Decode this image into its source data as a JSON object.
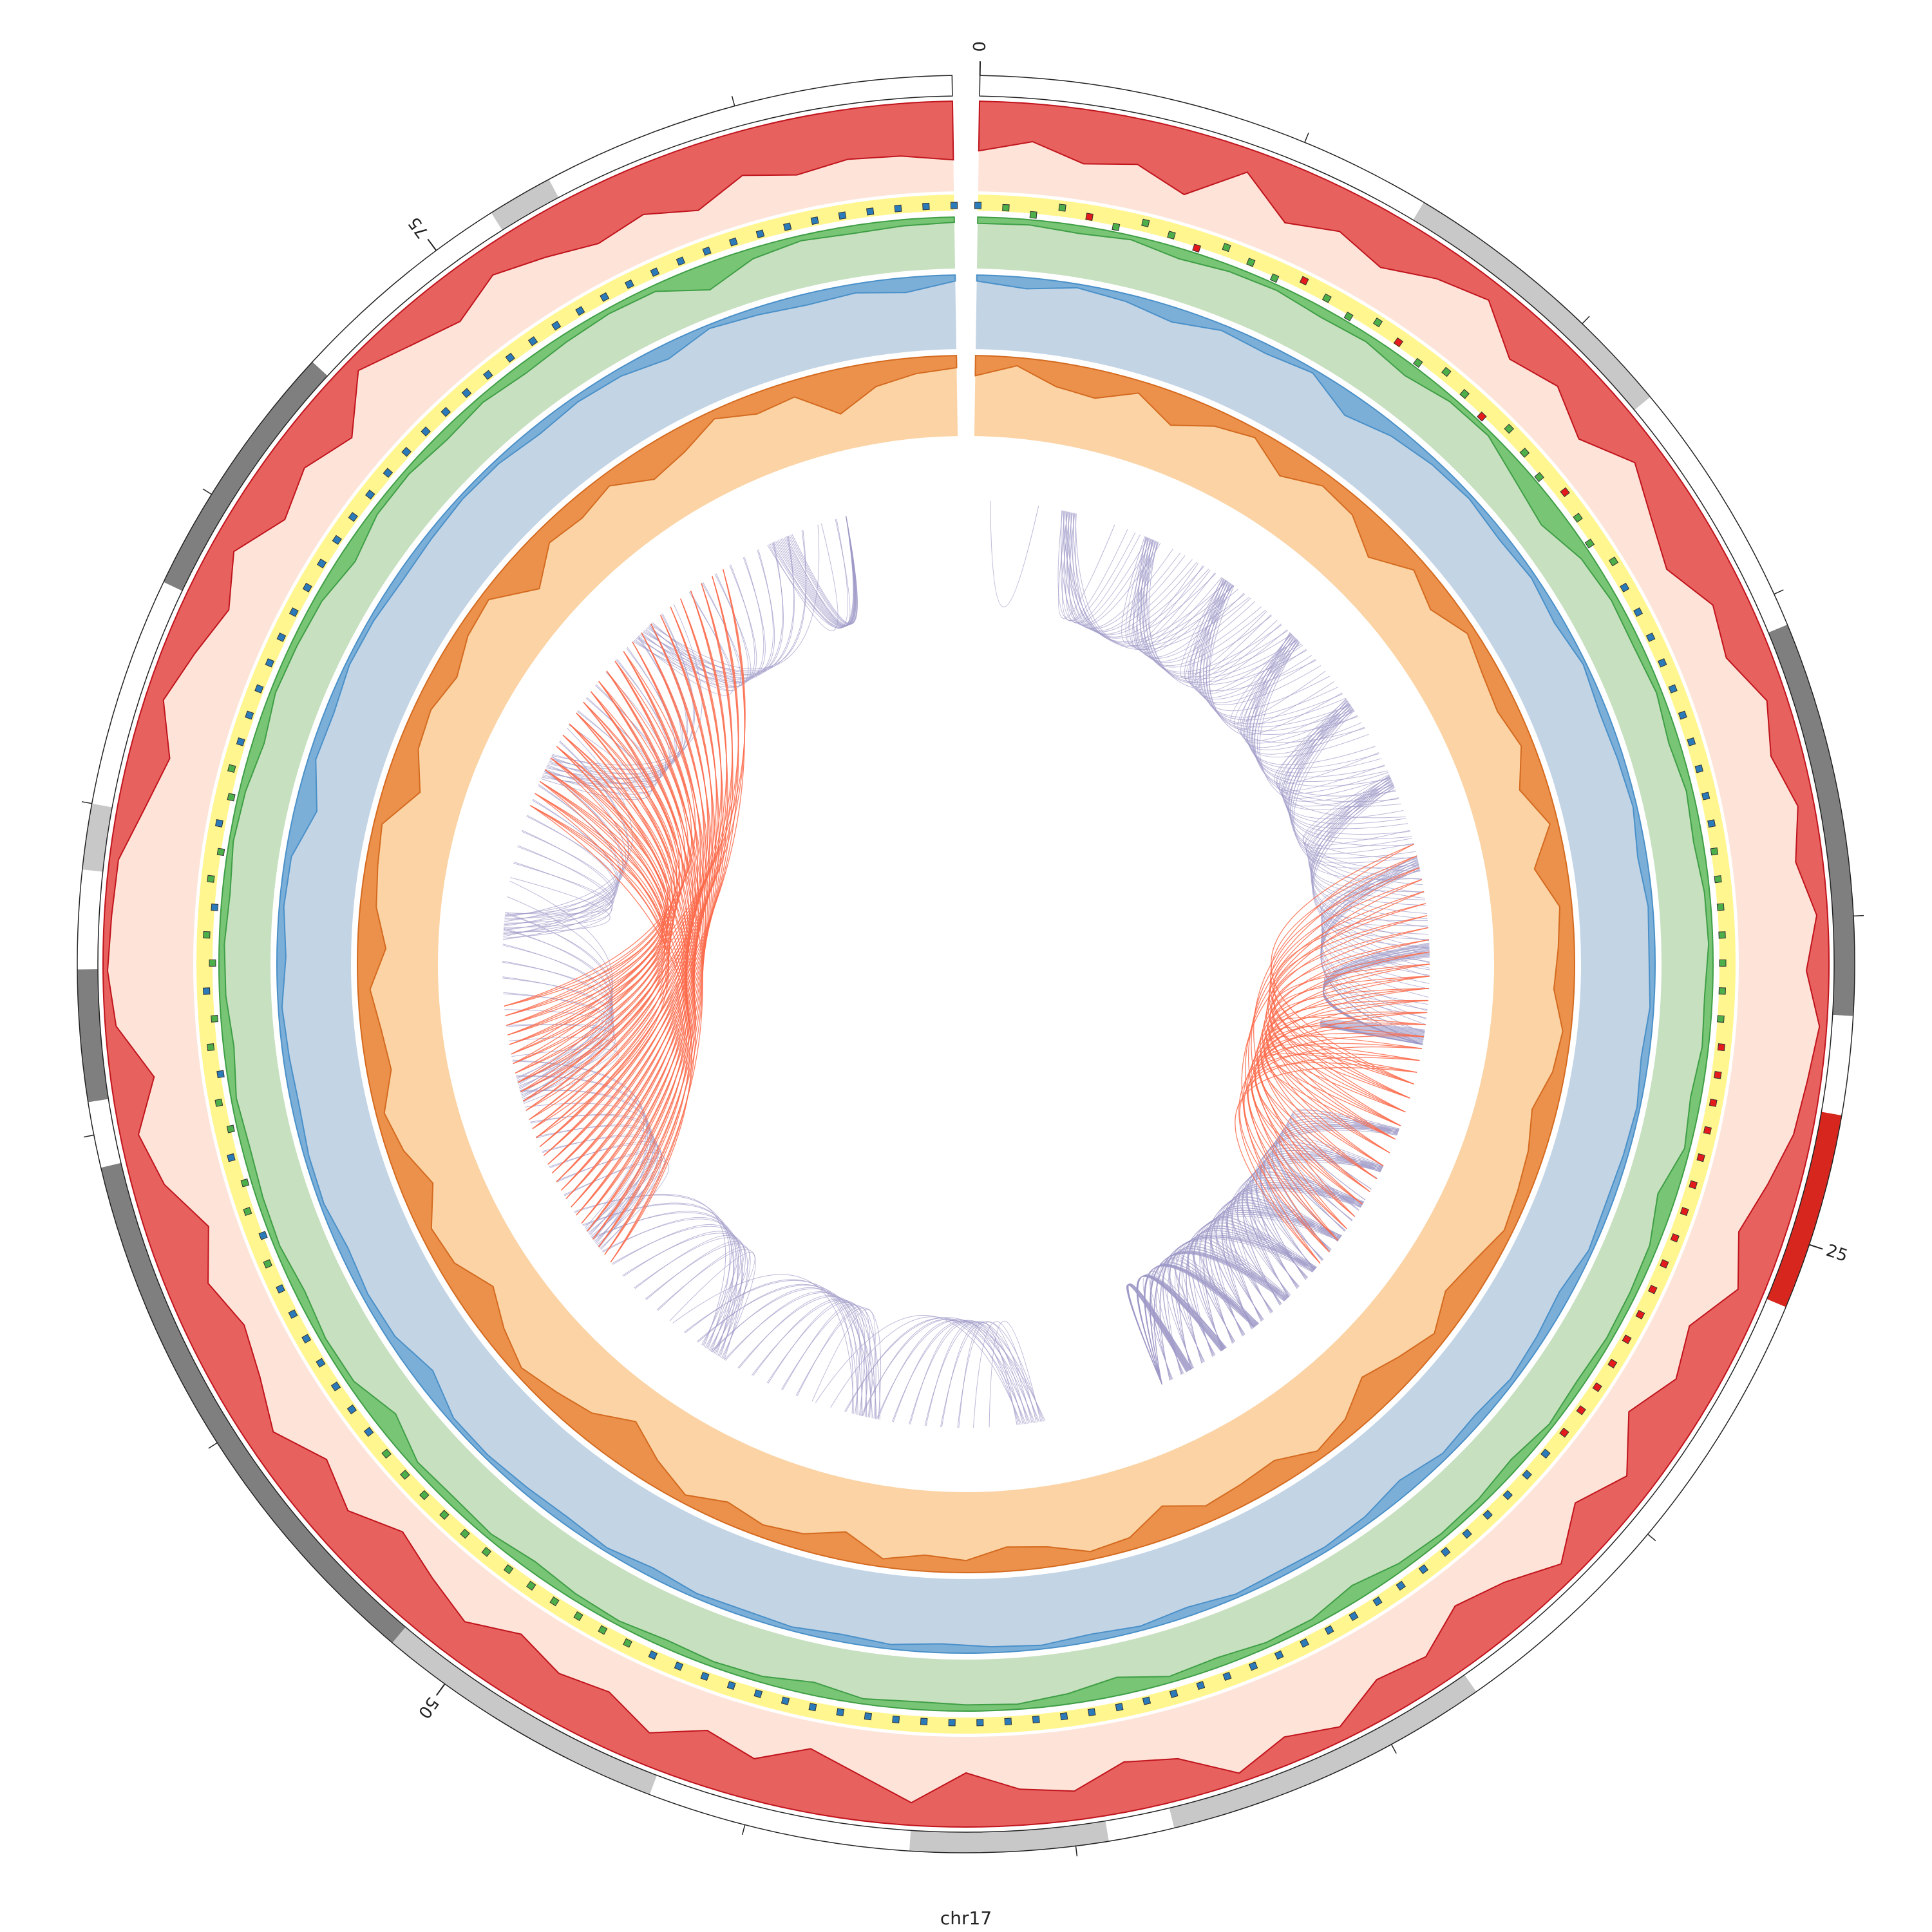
{
  "chart_data": {
    "type": "circos",
    "chromosome": {
      "name": "chr17",
      "length_mb": 83.3,
      "major_tick_labels": [
        "0",
        "25",
        "50",
        "75"
      ],
      "major_tick_values": [
        0,
        25,
        50,
        75
      ],
      "minor_tick_step_mb": 5,
      "cytobands": [
        {
          "start": 0.0,
          "end": 7.0,
          "stain": "white"
        },
        {
          "start": 7.0,
          "end": 11.5,
          "stain": "lightgray"
        },
        {
          "start": 11.5,
          "end": 15.5,
          "stain": "white"
        },
        {
          "start": 15.5,
          "end": 21.5,
          "stain": "darkgray"
        },
        {
          "start": 21.5,
          "end": 23.0,
          "stain": "white"
        },
        {
          "start": 23.0,
          "end": 26.0,
          "stain": "red"
        },
        {
          "start": 26.0,
          "end": 33.5,
          "stain": "white"
        },
        {
          "start": 33.5,
          "end": 38.5,
          "stain": "lightgray"
        },
        {
          "start": 38.5,
          "end": 39.5,
          "stain": "white"
        },
        {
          "start": 39.5,
          "end": 42.5,
          "stain": "lightgray"
        },
        {
          "start": 42.5,
          "end": 46.5,
          "stain": "white"
        },
        {
          "start": 46.5,
          "end": 51.0,
          "stain": "lightgray"
        },
        {
          "start": 51.0,
          "end": 59.5,
          "stain": "darkgray"
        },
        {
          "start": 59.5,
          "end": 60.5,
          "stain": "white"
        },
        {
          "start": 60.5,
          "end": 62.5,
          "stain": "darkgray"
        },
        {
          "start": 62.5,
          "end": 64.0,
          "stain": "white"
        },
        {
          "start": 64.0,
          "end": 65.0,
          "stain": "lightgray"
        },
        {
          "start": 65.0,
          "end": 68.5,
          "stain": "white"
        },
        {
          "start": 68.5,
          "end": 72.5,
          "stain": "darkgray"
        },
        {
          "start": 72.5,
          "end": 76.0,
          "stain": "white"
        },
        {
          "start": 76.0,
          "end": 77.0,
          "stain": "lightgray"
        },
        {
          "start": 77.0,
          "end": 83.3,
          "stain": "white"
        }
      ]
    },
    "tracks": [
      {
        "name": "red_area",
        "kind": "area",
        "fill": "#e34a4a",
        "stroke": "#c0141c",
        "background": "#fde3d8",
        "values": [
          0.55,
          0.42,
          0.6,
          0.5,
          0.7,
          0.25,
          0.62,
          0.45,
          0.58,
          0.35,
          0.2,
          0.55,
          0.4,
          0.62,
          0.3,
          0.5,
          0.65,
          0.38,
          0.48,
          0.22,
          0.35,
          0.18,
          0.3,
          0.12,
          0.25,
          0.08,
          0.15,
          0.2,
          0.35,
          0.5,
          0.28,
          0.6,
          0.45,
          0.7,
          0.3,
          0.55,
          0.2,
          0.48,
          0.62,
          0.35,
          0.42,
          0.15,
          0.3,
          0.1,
          0.45,
          0.55,
          0.32,
          0.4,
          0.6,
          0.25,
          0.5,
          0.7,
          0.45,
          0.6,
          0.35,
          0.58,
          0.5,
          0.65,
          0.4,
          0.55,
          0.7,
          0.42,
          0.6,
          0.3,
          0.5,
          0.62,
          0.45,
          0.68,
          0.35,
          0.2,
          0.48,
          0.12,
          0.05,
          0.08,
          0.1,
          0.3,
          0.45,
          0.2,
          0.35,
          0.5,
          0.25,
          0.55,
          0.4,
          0.6,
          0.15,
          0.35,
          0.5,
          0.3,
          0.45,
          0.6,
          0.52,
          0.7,
          0.48,
          0.62,
          0.55,
          0.58,
          0.65
        ]
      },
      {
        "name": "point_scatter",
        "kind": "scatter",
        "background": "#fff68f",
        "legend_colors": {
          "low": "#2b7bba",
          "mid": "#4daf4a",
          "high": "#e41a1c"
        }
      },
      {
        "name": "green_area",
        "kind": "area",
        "fill": "#6abf69",
        "stroke": "#3f9e45",
        "background": "#c6e0c0",
        "values": [
          0.12,
          0.1,
          0.15,
          0.08,
          0.2,
          0.12,
          0.1,
          0.18,
          0.14,
          0.25,
          0.1,
          0.08,
          0.3,
          0.45,
          0.2,
          0.12,
          0.15,
          0.1,
          0.2,
          0.12,
          0.18,
          0.1,
          0.08,
          0.15,
          0.12,
          0.2,
          0.1,
          0.35,
          0.15,
          0.12,
          0.1,
          0.14,
          0.08,
          0.2,
          0.12,
          0.1,
          0.15,
          0.3,
          0.12,
          0.1,
          0.18,
          0.12,
          0.35,
          0.2,
          0.1,
          0.12,
          0.15,
          0.1,
          0.25,
          0.12,
          0.1,
          0.15,
          0.08,
          0.12,
          0.2,
          0.1,
          0.15,
          0.12,
          0.4,
          0.12,
          0.1,
          0.18,
          0.1,
          0.12,
          0.15,
          0.1,
          0.2,
          0.12,
          0.1,
          0.15,
          0.08,
          0.12,
          0.22,
          0.1,
          0.12,
          0.15,
          0.3,
          0.12,
          0.1,
          0.18,
          0.12,
          0.2,
          0.15,
          0.1,
          0.12,
          0.5,
          0.2,
          0.1,
          0.15,
          0.12,
          0.1
        ]
      },
      {
        "name": "blue_area",
        "kind": "area",
        "fill": "#6fa8d6",
        "stroke": "#4a90c8",
        "background": "#c3d4e5",
        "values": [
          0.08,
          0.15,
          0.05,
          0.1,
          0.2,
          0.08,
          0.12,
          0.05,
          0.3,
          0.15,
          0.08,
          0.05,
          0.1,
          0.06,
          0.12,
          0.04,
          0.1,
          0.08,
          0.05,
          0.12,
          0.06,
          0.08,
          0.05,
          0.1,
          0.04,
          0.06,
          0.08,
          0.05,
          0.15,
          0.1,
          0.06,
          0.12,
          0.08,
          0.2,
          0.1,
          0.06,
          0.08,
          0.05,
          0.12,
          0.06,
          0.1,
          0.05,
          0.08,
          0.12,
          0.06,
          0.1,
          0.05,
          0.08,
          0.06,
          0.12,
          0.05,
          0.1,
          0.08,
          0.05,
          0.06,
          0.25,
          0.1,
          0.08,
          0.12,
          0.05,
          0.06,
          0.1,
          0.08,
          0.05,
          0.12,
          0.06,
          0.08,
          0.3,
          0.1,
          0.12,
          0.05,
          0.06,
          0.1,
          0.08,
          0.05,
          0.06,
          0.12,
          0.08,
          0.1,
          0.2,
          0.05,
          0.1,
          0.15,
          0.12,
          0.2,
          0.08
        ]
      },
      {
        "name": "orange_area",
        "kind": "area",
        "fill": "#e8853d",
        "stroke": "#d46a1f",
        "background": "#fbd3a4",
        "values": [
          0.25,
          0.1,
          0.3,
          0.35,
          0.15,
          0.4,
          0.2,
          0.1,
          0.35,
          0.15,
          0.2,
          0.45,
          0.15,
          0.3,
          0.1,
          0.2,
          0.25,
          0.15,
          0.35,
          0.1,
          0.4,
          0.15,
          0.2,
          0.25,
          0.1,
          0.15,
          0.3,
          0.2,
          0.15,
          0.1,
          0.25,
          0.35,
          0.15,
          0.3,
          0.45,
          0.2,
          0.1,
          0.3,
          0.25,
          0.2,
          0.4,
          0.15,
          0.1,
          0.25,
          0.3,
          0.15,
          0.2,
          0.1,
          0.35,
          0.2,
          0.15,
          0.25,
          0.1,
          0.3,
          0.55,
          0.3,
          0.2,
          0.1,
          0.25,
          0.45,
          0.2,
          0.15,
          0.4,
          0.2,
          0.1,
          0.3,
          0.25,
          0.15,
          0.35,
          0.2,
          0.15,
          0.1,
          0.45,
          0.25,
          0.2,
          0.3,
          0.15,
          0.1,
          0.5,
          0.2,
          0.25,
          0.15,
          0.4,
          0.3,
          0.1,
          0.25,
          0.2,
          0.55,
          0.3,
          0.2,
          0.15
        ]
      },
      {
        "name": "links",
        "kind": "links",
        "colors": {
          "intra": "#9e9ac8",
          "highlight": "#fb6a4a"
        }
      }
    ]
  }
}
